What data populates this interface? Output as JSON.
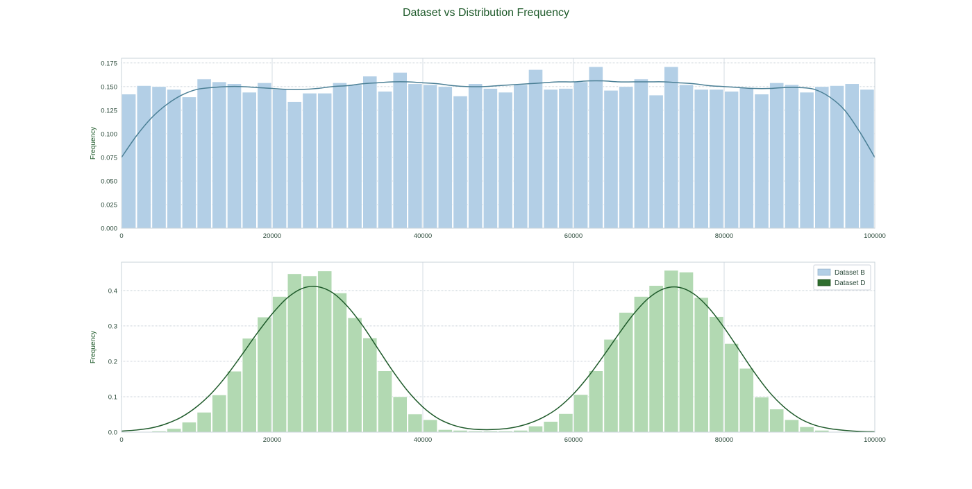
{
  "figure": {
    "title": "Dataset vs Distribution Frequency"
  },
  "chart_data": [
    {
      "type": "bar",
      "title": "",
      "xlabel": "",
      "ylabel": "Frequency",
      "xlim": [
        0,
        100000
      ],
      "ylim": [
        0,
        0.18
      ],
      "xticks": [
        "0",
        "20000",
        "40000",
        "60000",
        "80000",
        "100000"
      ],
      "yticks": [
        "0.000",
        "0.025",
        "0.050",
        "0.075",
        "0.100",
        "0.125",
        "0.150",
        "0.175"
      ],
      "grid": true,
      "legend": "none",
      "bin_width": 2000,
      "bar_color": "#b3cfe6",
      "curve_color": "#4a7f95",
      "series": [
        {
          "values": [
            0.142,
            0.151,
            0.15,
            0.147,
            0.139,
            0.158,
            0.155,
            0.153,
            0.144,
            0.154,
            0.147,
            0.134,
            0.143,
            0.143,
            0.154,
            0.152,
            0.161,
            0.145,
            0.165,
            0.153,
            0.152,
            0.15,
            0.14,
            0.153,
            0.148,
            0.144,
            0.152,
            0.168,
            0.147,
            0.148,
            0.155,
            0.171,
            0.146,
            0.15,
            0.158,
            0.141,
            0.171,
            0.152,
            0.147,
            0.147,
            0.145,
            0.149,
            0.142,
            0.154,
            0.152,
            0.144,
            0.15,
            0.151,
            0.153,
            0.147
          ],
          "kde_x": [
            0,
            2000,
            4000,
            6000,
            8000,
            10000,
            12000,
            14000,
            16000,
            18000,
            20000,
            22000,
            24000,
            26000,
            28000,
            30000,
            32000,
            34000,
            36000,
            38000,
            40000,
            42000,
            44000,
            46000,
            48000,
            50000,
            52000,
            54000,
            56000,
            58000,
            60000,
            62000,
            64000,
            66000,
            68000,
            70000,
            72000,
            74000,
            76000,
            78000,
            80000,
            82000,
            84000,
            86000,
            88000,
            90000,
            92000,
            94000,
            96000,
            98000,
            100000
          ],
          "kde_y": [
            0.075,
            0.098,
            0.117,
            0.131,
            0.141,
            0.147,
            0.149,
            0.15,
            0.15,
            0.149,
            0.148,
            0.147,
            0.147,
            0.148,
            0.15,
            0.151,
            0.153,
            0.154,
            0.155,
            0.155,
            0.154,
            0.153,
            0.151,
            0.15,
            0.15,
            0.151,
            0.152,
            0.153,
            0.154,
            0.155,
            0.155,
            0.156,
            0.156,
            0.155,
            0.155,
            0.155,
            0.155,
            0.154,
            0.153,
            0.151,
            0.15,
            0.149,
            0.148,
            0.148,
            0.149,
            0.149,
            0.147,
            0.139,
            0.125,
            0.102,
            0.075
          ]
        }
      ]
    },
    {
      "type": "bar",
      "title": "",
      "xlabel": "",
      "ylabel": "Frequency",
      "xlim": [
        0,
        100000
      ],
      "ylim": [
        0,
        0.48
      ],
      "xticks": [
        "0",
        "20000",
        "40000",
        "60000",
        "80000",
        "100000"
      ],
      "yticks": [
        "0.0",
        "0.1",
        "0.2",
        "0.3",
        "0.4"
      ],
      "grid": true,
      "legend": "top-right",
      "legend_entries": [
        {
          "name": "Dataset B",
          "color": "#b3cfe6",
          "edge": "#9ab5cc"
        },
        {
          "name": "Dataset D",
          "color": "#2e6e2e",
          "edge": "#1e4f1e"
        }
      ],
      "bin_width": 2000,
      "bar_color": "#b2d9b2",
      "curve_color": "#1e5a2a",
      "series": [
        {
          "values": [
            0.0,
            0.0,
            0.003,
            0.01,
            0.028,
            0.056,
            0.105,
            0.172,
            0.265,
            0.325,
            0.383,
            0.447,
            0.441,
            0.455,
            0.393,
            0.323,
            0.266,
            0.173,
            0.1,
            0.051,
            0.035,
            0.007,
            0.005,
            0.003,
            0.003,
            0.003,
            0.005,
            0.017,
            0.03,
            0.052,
            0.106,
            0.173,
            0.262,
            0.338,
            0.383,
            0.414,
            0.457,
            0.452,
            0.38,
            0.326,
            0.25,
            0.18,
            0.099,
            0.065,
            0.035,
            0.015,
            0.005,
            0.0,
            0.0,
            0.0
          ],
          "kde_x": [
            0,
            2000,
            4000,
            6000,
            8000,
            10000,
            12000,
            14000,
            16000,
            18000,
            20000,
            22000,
            24000,
            26000,
            28000,
            30000,
            32000,
            34000,
            36000,
            38000,
            40000,
            42000,
            44000,
            46000,
            48000,
            50000,
            52000,
            54000,
            56000,
            58000,
            60000,
            62000,
            64000,
            66000,
            68000,
            70000,
            72000,
            74000,
            76000,
            78000,
            80000,
            82000,
            84000,
            86000,
            88000,
            90000,
            92000,
            94000,
            96000,
            98000,
            100000
          ],
          "kde_y": [
            0.003,
            0.006,
            0.012,
            0.024,
            0.043,
            0.072,
            0.111,
            0.161,
            0.219,
            0.279,
            0.334,
            0.379,
            0.406,
            0.411,
            0.394,
            0.355,
            0.301,
            0.237,
            0.173,
            0.116,
            0.071,
            0.039,
            0.02,
            0.01,
            0.007,
            0.008,
            0.013,
            0.024,
            0.042,
            0.069,
            0.108,
            0.158,
            0.216,
            0.277,
            0.334,
            0.379,
            0.405,
            0.409,
            0.39,
            0.35,
            0.295,
            0.232,
            0.169,
            0.113,
            0.07,
            0.039,
            0.02,
            0.01,
            0.005,
            0.002,
            0.001
          ]
        }
      ]
    }
  ]
}
